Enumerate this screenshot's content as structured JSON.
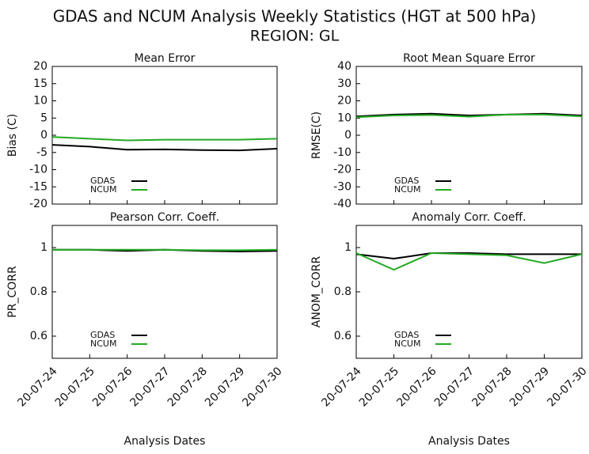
{
  "title": "GDAS and NCUM Analysis Weekly Statistics (HGT at 500 hPa)",
  "subtitle": "REGION: GL",
  "chart_data": [
    {
      "type": "line",
      "title": "Mean Error",
      "ylabel": "Bias (C)",
      "categories": [
        null,
        null,
        null,
        null,
        null,
        null,
        null
      ],
      "ylim": [
        -20,
        20
      ],
      "yticks": [
        -20,
        -15,
        -10,
        -5,
        0,
        5,
        10,
        15,
        20
      ],
      "series": [
        {
          "name": "GDAS",
          "color": "#000000",
          "values": [
            -2.8,
            -3.3,
            -4.2,
            -4.1,
            -4.3,
            -4.4,
            -3.9
          ]
        },
        {
          "name": "NCUM",
          "color": "#22aa22",
          "values": [
            -0.5,
            -1.0,
            -1.5,
            -1.3,
            -1.3,
            -1.3,
            -1.0
          ]
        }
      ]
    },
    {
      "type": "line",
      "title": "Root Mean Square Error",
      "ylabel": "RMSE(C)",
      "categories": [
        null,
        null,
        null,
        null,
        null,
        null,
        null
      ],
      "ylim": [
        -40,
        40
      ],
      "yticks": [
        -40,
        -30,
        -20,
        -10,
        0,
        10,
        20,
        30,
        40
      ],
      "series": [
        {
          "name": "GDAS",
          "color": "#000000",
          "values": [
            11,
            12,
            12.5,
            11.5,
            12,
            12.5,
            11.5
          ]
        },
        {
          "name": "NCUM",
          "color": "#22aa22",
          "values": [
            10.5,
            11.5,
            11.8,
            10.8,
            12,
            12,
            11
          ]
        }
      ]
    },
    {
      "type": "line",
      "title": "Pearson Corr. Coeff.",
      "ylabel": "PR_CORR",
      "xlabel": "Analysis Dates",
      "categories": [
        "20-07-24",
        "20-07-25",
        "20-07-26",
        "20-07-27",
        "20-07-28",
        "20-07-29",
        "20-07-30"
      ],
      "ylim": [
        0.5,
        1.1
      ],
      "yticks": [
        0.6,
        0.8,
        1
      ],
      "series": [
        {
          "name": "GDAS",
          "color": "#000000",
          "values": [
            0.99,
            0.99,
            0.985,
            0.99,
            0.985,
            0.982,
            0.985
          ]
        },
        {
          "name": "NCUM",
          "color": "#22aa22",
          "values": [
            0.99,
            0.99,
            0.99,
            0.99,
            0.988,
            0.988,
            0.99
          ]
        }
      ]
    },
    {
      "type": "line",
      "title": "Anomaly Corr. Coeff.",
      "ylabel": "ANOM_CORR",
      "xlabel": "Analysis Dates",
      "categories": [
        "20-07-24",
        "20-07-25",
        "20-07-26",
        "20-07-27",
        "20-07-28",
        "20-07-29",
        "20-07-30"
      ],
      "ylim": [
        0.5,
        1.1
      ],
      "yticks": [
        0.6,
        0.8,
        1
      ],
      "series": [
        {
          "name": "GDAS",
          "color": "#000000",
          "values": [
            0.97,
            0.95,
            0.975,
            0.975,
            0.97,
            0.97,
            0.97
          ]
        },
        {
          "name": "NCUM",
          "color": "#22aa22",
          "values": [
            0.975,
            0.9,
            0.975,
            0.97,
            0.965,
            0.93,
            0.97
          ]
        }
      ]
    }
  ]
}
